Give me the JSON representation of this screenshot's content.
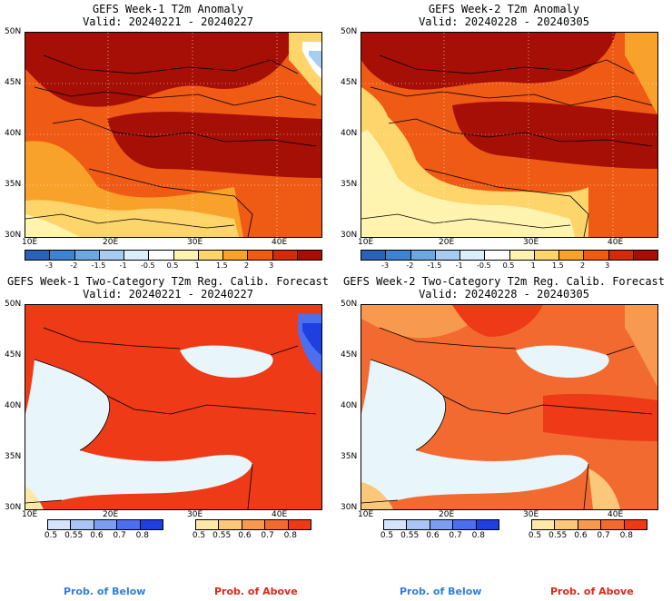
{
  "panels": [
    {
      "title": "GEFS Week-1 T2m Anomaly",
      "valid": "Valid: 20240221 - 20240227"
    },
    {
      "title": "GEFS Week-2 T2m Anomaly",
      "valid": "Valid: 20240228 - 20240305"
    },
    {
      "title": "GEFS Week-1 Two-Category T2m Reg. Calib. Forecast",
      "valid": "Valid: 20240221 - 20240227"
    },
    {
      "title": "GEFS Week-2 Two-Category T2m Reg. Calib. Forecast",
      "valid": "Valid: 20240228 - 20240305"
    }
  ],
  "lat_labels": [
    "50N",
    "45N",
    "40N",
    "35N",
    "30N"
  ],
  "lon_labels": [
    "10E",
    "20E",
    "30E",
    "40E"
  ],
  "anomaly_scale": {
    "labels": [
      "-3",
      "-2",
      "-1.5",
      "-1",
      "-0.5",
      "0.5",
      "1",
      "1.5",
      "2",
      "3"
    ],
    "colors": [
      "#2a63b6",
      "#3d83d1",
      "#6ba7e3",
      "#a6ccef",
      "#dceefa",
      "#ffffff",
      "#fff3b0",
      "#fdd56b",
      "#f9a22b",
      "#ef5a14",
      "#d22a0a",
      "#a50f06"
    ]
  },
  "below_scale": {
    "labels": [
      "0.5",
      "0.55",
      "0.6",
      "0.7",
      "0.8"
    ],
    "colors": [
      "#d6e4fb",
      "#aac4f5",
      "#7b9ef0",
      "#4c6ff0",
      "#1f3fe0"
    ]
  },
  "above_scale": {
    "labels": [
      "0.5",
      "0.55",
      "0.6",
      "0.7",
      "0.8"
    ],
    "colors": [
      "#fde8a8",
      "#fbc77a",
      "#f79a50",
      "#f26a30",
      "#ee3a17"
    ]
  },
  "footer": {
    "below": "Prob. of Below",
    "above": "Prob. of Above",
    "below_color": "#2f7fe0",
    "above_color": "#e0281a"
  }
}
